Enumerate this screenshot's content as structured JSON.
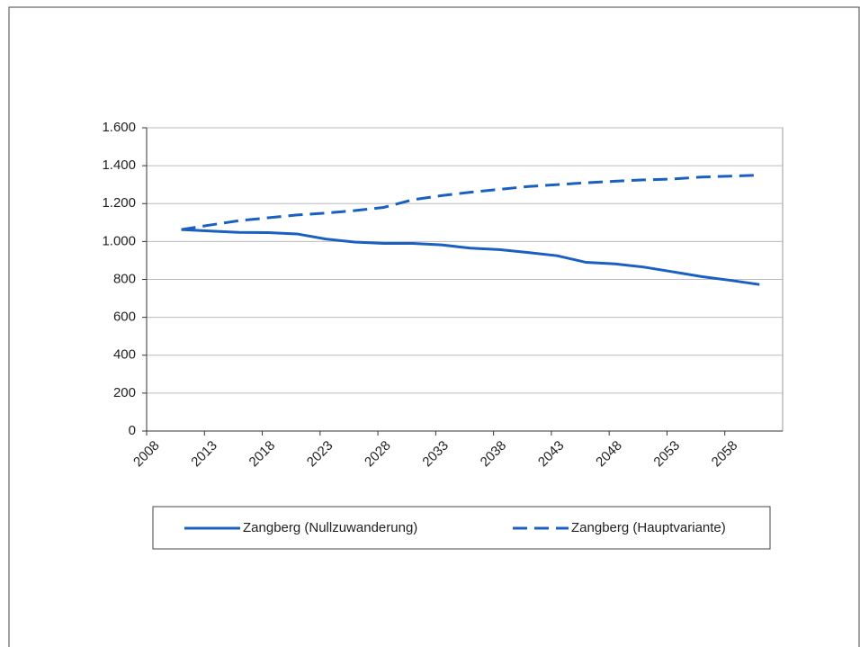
{
  "chart_data": {
    "type": "line",
    "x": [
      2011,
      2013.5,
      2016,
      2018.5,
      2021,
      2023.5,
      2026,
      2028.5,
      2031,
      2033.5,
      2036,
      2038.5,
      2041,
      2043.5,
      2046,
      2048.5,
      2051,
      2053.5,
      2056,
      2058.5,
      2061
    ],
    "series": [
      {
        "name": "Zangberg (Nullzuwanderung)",
        "color": "#1a5fc2",
        "dash": false,
        "values": [
          1063,
          1055,
          1048,
          1047,
          1040,
          1013,
          997,
          990,
          990,
          982,
          965,
          957,
          942,
          925,
          890,
          882,
          865,
          840,
          815,
          795,
          773
        ]
      },
      {
        "name": "Zangberg (Hauptvariante)",
        "color": "#1a5fc2",
        "dash": true,
        "values": [
          1063,
          1087,
          1110,
          1125,
          1140,
          1150,
          1163,
          1180,
          1220,
          1242,
          1260,
          1275,
          1290,
          1300,
          1310,
          1318,
          1325,
          1330,
          1340,
          1345,
          1350
        ]
      }
    ],
    "xlim": [
      2008,
      2063
    ],
    "xticks": [
      2008,
      2013,
      2018,
      2023,
      2028,
      2033,
      2038,
      2043,
      2048,
      2053,
      2058
    ],
    "ylim": [
      0,
      1600
    ],
    "yticks": [
      0,
      200,
      400,
      600,
      800,
      {
        "value": 1000,
        "label": "1.000"
      },
      {
        "value": 1200,
        "label": "1.200"
      },
      {
        "value": 1400,
        "label": "1.400"
      },
      {
        "value": 1600,
        "label": "1.600"
      }
    ],
    "grid": true,
    "legend": "bottom"
  }
}
